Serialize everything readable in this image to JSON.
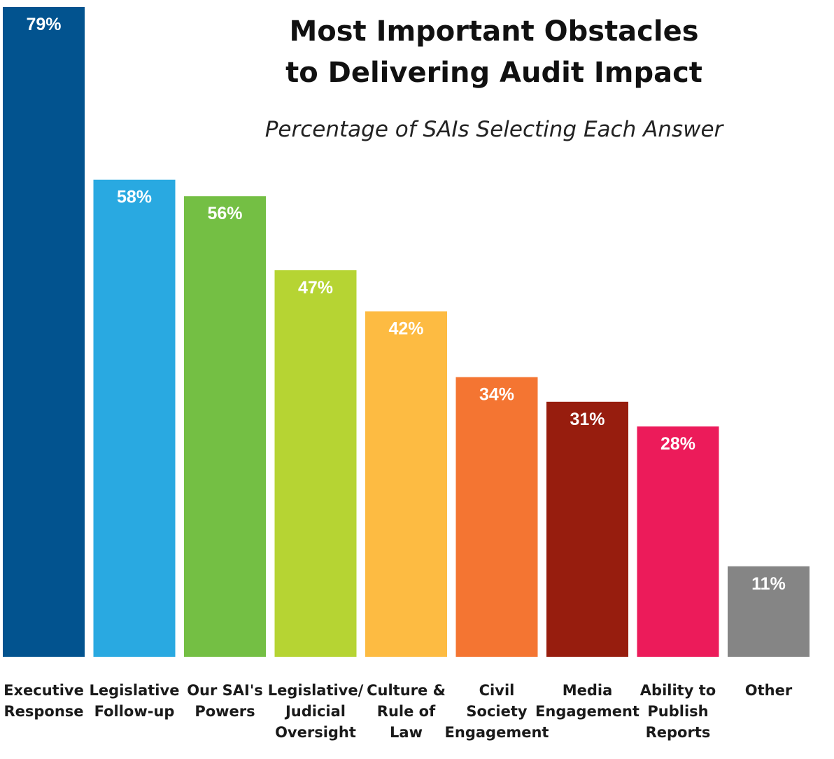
{
  "chart_data": {
    "type": "bar",
    "title": [
      "Most Important Obstacles",
      "to Delivering Audit Impact"
    ],
    "subtitle": "Percentage of SAIs Selecting Each Answer",
    "xlabel": "",
    "ylabel": "",
    "ylim": [
      0,
      79
    ],
    "grid": false,
    "categories": [
      [
        "Executive",
        "Response"
      ],
      [
        "Legislative",
        "Follow-up"
      ],
      [
        "Our SAI's",
        "Powers"
      ],
      [
        "Legislative/",
        "Judicial",
        "Oversight"
      ],
      [
        "Culture &",
        "Rule of",
        "Law"
      ],
      [
        "Civil",
        "Society",
        "Engagement"
      ],
      [
        "Media",
        "Engagement"
      ],
      [
        "Ability to",
        "Publish",
        "Reports"
      ],
      [
        "Other"
      ]
    ],
    "values": [
      79,
      58,
      56,
      47,
      42,
      34,
      31,
      28,
      11
    ],
    "value_labels": [
      "79%",
      "58%",
      "56%",
      "47%",
      "42%",
      "34%",
      "31%",
      "28%",
      "11%"
    ],
    "colors": [
      "#02538f",
      "#29a9e1",
      "#74bf44",
      "#b6d433",
      "#fdbb42",
      "#f47532",
      "#971d0e",
      "#ec1b5a",
      "#858585"
    ]
  }
}
